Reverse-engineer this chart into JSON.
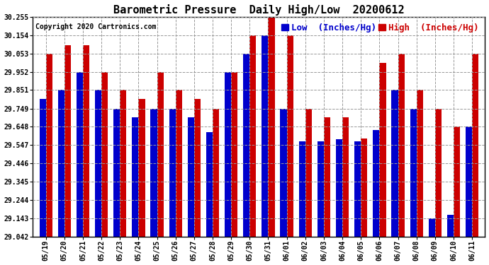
{
  "title": "Barometric Pressure  Daily High/Low  20200612",
  "copyright": "Copyright 2020 Cartronics.com",
  "legend_low": "Low  (Inches/Hg)",
  "legend_high": "High  (Inches/Hg)",
  "dates": [
    "05/19",
    "05/20",
    "05/21",
    "05/22",
    "05/23",
    "05/24",
    "05/25",
    "05/26",
    "05/27",
    "05/28",
    "05/29",
    "05/30",
    "05/31",
    "06/01",
    "06/02",
    "06/03",
    "06/04",
    "06/05",
    "06/06",
    "06/07",
    "06/08",
    "06/09",
    "06/10",
    "06/11"
  ],
  "low_values": [
    29.803,
    29.852,
    29.952,
    29.853,
    29.749,
    29.7,
    29.749,
    29.749,
    29.7,
    29.618,
    29.952,
    30.053,
    30.154,
    29.749,
    29.567,
    29.567,
    29.58,
    29.567,
    29.63,
    29.851,
    29.749,
    29.143,
    29.16,
    29.648
  ],
  "high_values": [
    30.053,
    30.1,
    30.1,
    29.952,
    29.851,
    29.803,
    29.952,
    29.851,
    29.803,
    29.749,
    29.952,
    30.154,
    30.255,
    30.154,
    29.749,
    29.7,
    29.7,
    29.582,
    30.002,
    30.053,
    29.851,
    29.749,
    29.648,
    30.053
  ],
  "ylim_min": 29.042,
  "ylim_max": 30.255,
  "ytick_values": [
    29.042,
    29.143,
    29.244,
    29.345,
    29.446,
    29.547,
    29.648,
    29.749,
    29.851,
    29.952,
    30.053,
    30.154,
    30.255
  ],
  "low_color": "#0000cc",
  "high_color": "#cc0000",
  "bg_color": "#ffffff",
  "grid_color": "#999999",
  "title_fontsize": 11,
  "copyright_fontsize": 7,
  "tick_fontsize": 7,
  "legend_fontsize": 9,
  "bar_width": 0.35
}
